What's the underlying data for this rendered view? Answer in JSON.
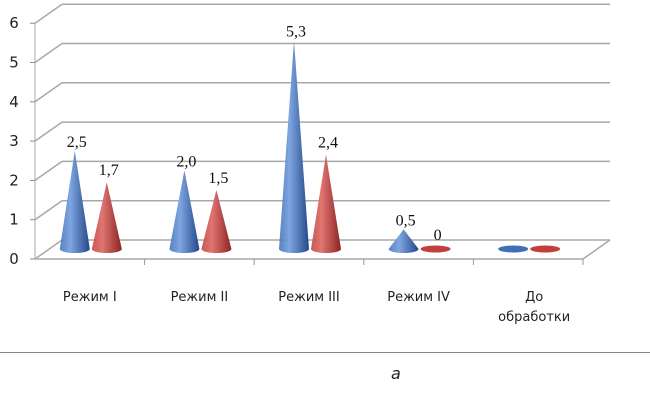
{
  "chart_data": {
    "type": "bar",
    "style": "3d-cone",
    "categories": [
      "Режим I",
      "Режим II",
      "Режим III",
      "Режим IV",
      "До обработки"
    ],
    "series": [
      {
        "values": [
          2.5,
          2.0,
          5.3,
          0.5,
          0
        ],
        "labels": [
          "2,5",
          "2,0",
          "5,3",
          "0,5",
          null
        ],
        "color": "#3f6fb8"
      },
      {
        "values": [
          1.7,
          1.5,
          2.4,
          0,
          0
        ],
        "labels": [
          "1,7",
          "1,5",
          "2,4",
          "0",
          null
        ],
        "color": "#c0403d"
      }
    ],
    "yticks": [
      "0",
      "1",
      "2",
      "3",
      "4",
      "5",
      "6"
    ],
    "ylim": [
      0,
      6
    ],
    "grid": true,
    "legend": "none",
    "xlabel": "",
    "ylabel": "",
    "title": ""
  },
  "caption": "а"
}
